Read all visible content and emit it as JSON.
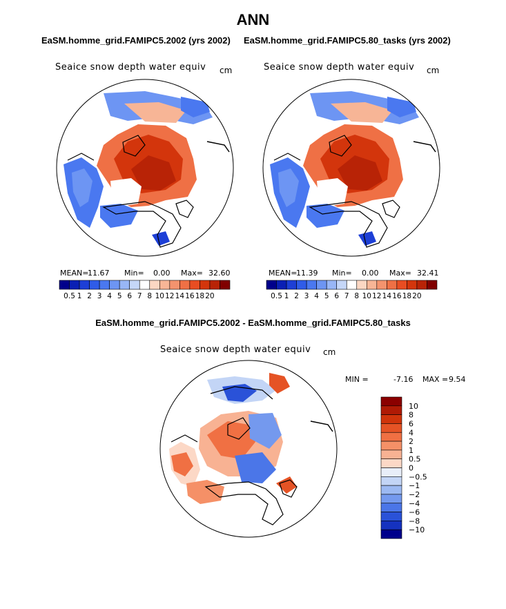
{
  "title": "ANN",
  "chart_data": [
    {
      "type": "heatmap",
      "projection": "north polar stereographic",
      "title": "EaSM.homme_grid.FAMIPC5.2002 (yrs 2002)",
      "field_label": "Seaice snow depth water equiv",
      "units": "cm",
      "stats": {
        "mean_label": "MEAN=",
        "mean": "11.67",
        "min_label": "Min=",
        "min": "0.00",
        "max_label": "Max=",
        "max": "32.60"
      },
      "colorbar_levels": [
        "0.5",
        "1",
        "2",
        "3",
        "4",
        "5",
        "6",
        "7",
        "8",
        "10",
        "12",
        "14",
        "16",
        "18",
        "20"
      ],
      "colors": [
        "#00008b",
        "#0a1fb4",
        "#1d3fd6",
        "#2f5ce8",
        "#4a78f0",
        "#6d95f3",
        "#98b6f6",
        "#c5d7f8",
        "#ffffff",
        "#fbd7c3",
        "#f7b596",
        "#f4936e",
        "#ef7045",
        "#e84d22",
        "#d3350c",
        "#b82306",
        "#800000"
      ]
    },
    {
      "type": "heatmap",
      "projection": "north polar stereographic",
      "title": "EaSM.homme_grid.FAMIPC5.80_tasks (yrs 2002)",
      "field_label": "Seaice snow depth water equiv",
      "units": "cm",
      "stats": {
        "mean_label": "MEAN=",
        "mean": "11.39",
        "min_label": "Min=",
        "min": "0.00",
        "max_label": "Max=",
        "max": "32.41"
      },
      "colorbar_levels": [
        "0.5",
        "1",
        "2",
        "3",
        "4",
        "5",
        "6",
        "7",
        "8",
        "10",
        "12",
        "14",
        "16",
        "18",
        "20"
      ],
      "colors": [
        "#00008b",
        "#0a1fb4",
        "#1d3fd6",
        "#2f5ce8",
        "#4a78f0",
        "#6d95f3",
        "#98b6f6",
        "#c5d7f8",
        "#ffffff",
        "#fbd7c3",
        "#f7b596",
        "#f4936e",
        "#ef7045",
        "#e84d22",
        "#d3350c",
        "#b82306",
        "#800000"
      ]
    },
    {
      "type": "heatmap",
      "projection": "north polar stereographic",
      "title": "EaSM.homme_grid.FAMIPC5.2002 - EaSM.homme_grid.FAMIPC5.80_tasks",
      "field_label": "Seaice snow depth water equiv",
      "units": "cm",
      "stats": {
        "min_label": "MIN =",
        "min": "-7.16",
        "max_label": "MAX =",
        "max": "9.54"
      },
      "colorbar_levels": [
        "10",
        "8",
        "6",
        "4",
        "2",
        "1",
        "0.5",
        "0",
        "−0.5",
        "−1",
        "−2",
        "−4",
        "−6",
        "−8",
        "−10"
      ],
      "colors": [
        "#8b0000",
        "#b01a05",
        "#d0340b",
        "#e55325",
        "#f07043",
        "#f59067",
        "#f8b293",
        "#fcd8c6",
        "#e8eef9",
        "#c3d5f6",
        "#9cb9f2",
        "#7499ee",
        "#4b76e8",
        "#2a52d8",
        "#1532bf",
        "#00008b"
      ]
    }
  ]
}
